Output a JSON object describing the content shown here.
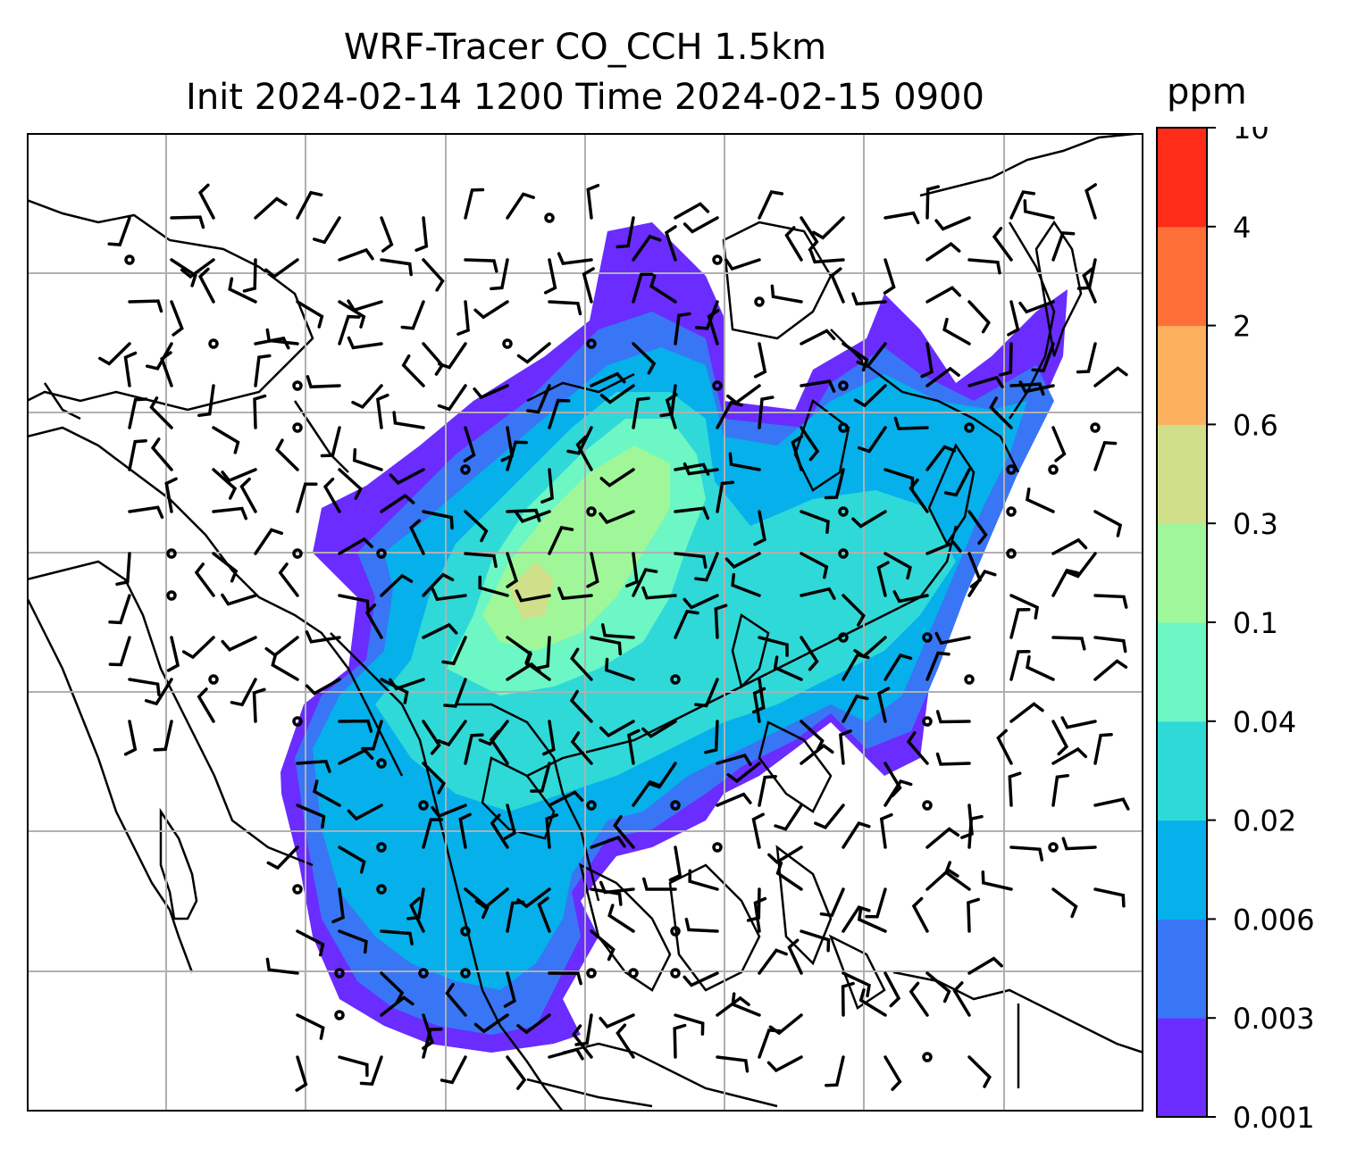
{
  "title": {
    "line1": "WRF-Tracer CO_CCH 1.5km",
    "line2": "Init 2024-02-14 1200 Time 2024-02-15 0900"
  },
  "colorbar": {
    "unit": "ppm",
    "tick_labels": [
      "0.001",
      "0.003",
      "0.006",
      "0.02",
      "0.04",
      "0.1",
      "0.3",
      "0.6",
      "2",
      "4",
      "10"
    ],
    "colors": [
      "#6a2cff",
      "#3876f5",
      "#06b0ea",
      "#2fd9d8",
      "#6cf7c4",
      "#9ff79a",
      "#d0e08a",
      "#fdb05e",
      "#ff7038",
      "#ff2c1a"
    ]
  },
  "map": {
    "gridlines": true,
    "field": "CO tracer concentration with wind barbs",
    "legend_position": "right"
  }
}
